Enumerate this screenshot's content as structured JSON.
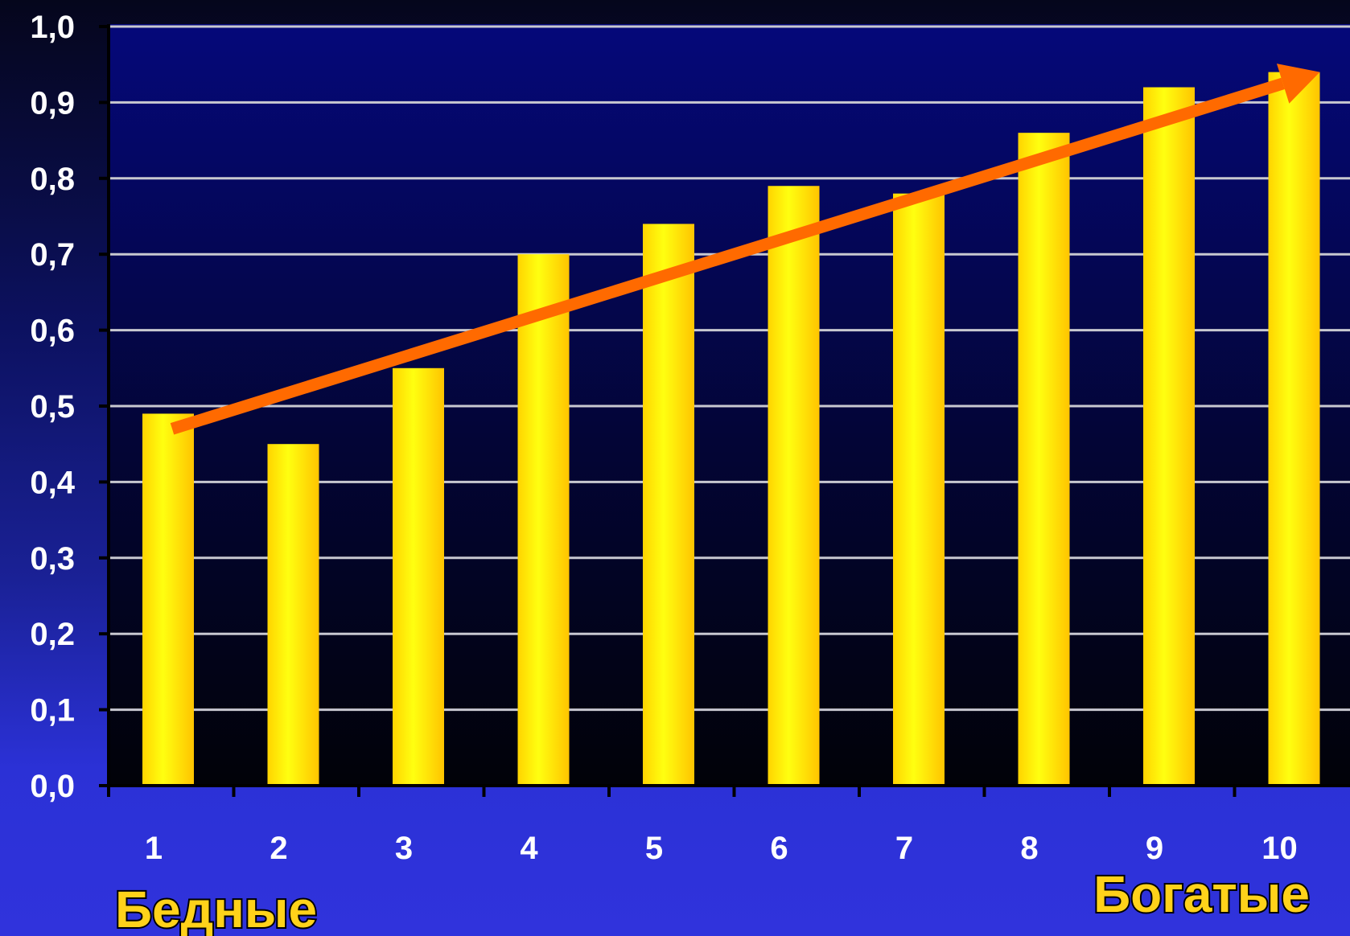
{
  "chart_data": {
    "type": "bar",
    "title": "",
    "xlabel": "",
    "ylabel": "",
    "categories": [
      "1",
      "2",
      "3",
      "4",
      "5",
      "6",
      "7",
      "8",
      "9",
      "10"
    ],
    "values": [
      0.49,
      0.45,
      0.55,
      0.7,
      0.74,
      0.79,
      0.78,
      0.86,
      0.92,
      0.94
    ],
    "ylim": [
      0,
      1.0
    ],
    "ytick_labels": [
      "0,0",
      "0,1",
      "0,2",
      "0,3",
      "0,4",
      "0,5",
      "0,6",
      "0,7",
      "0,8",
      "0,9",
      "1,0"
    ],
    "grid": true,
    "bar_color": "#ffe600",
    "trend_arrow": {
      "from": [
        1,
        0.47
      ],
      "to": [
        10,
        0.94
      ],
      "color": "#ff6a00"
    },
    "annotations": {
      "left": "Бедные",
      "right": "Богатые",
      "color": "#ffd21a"
    }
  }
}
